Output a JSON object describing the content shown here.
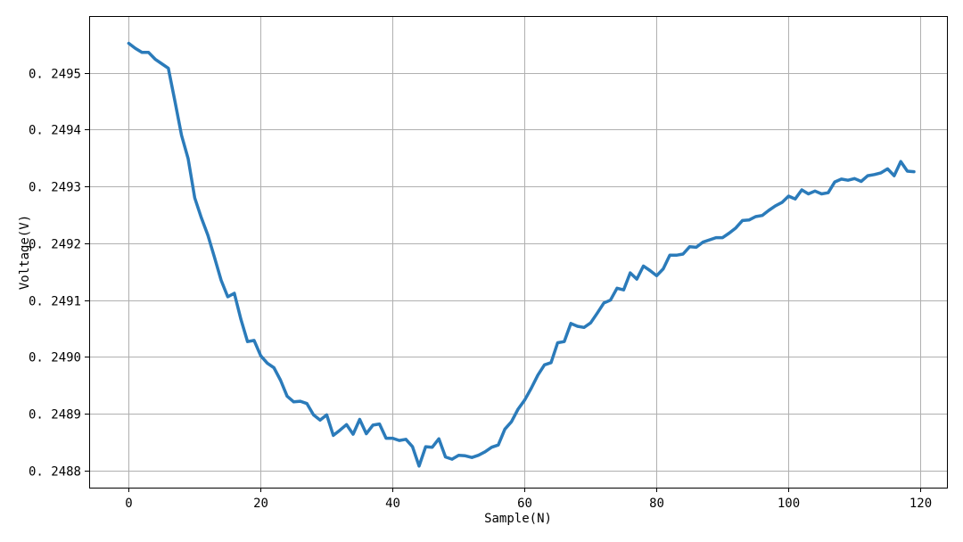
{
  "chart_data": {
    "type": "line",
    "title": "",
    "xlabel": "Sample(N)",
    "ylabel": "Voltage(V)",
    "xlim": [
      -6,
      124
    ],
    "ylim": [
      0.24877,
      0.2496
    ],
    "xticks": [
      0,
      20,
      40,
      60,
      80,
      100,
      120
    ],
    "xtick_labels": [
      "0",
      "20",
      "40",
      "60",
      "80",
      "100",
      "120"
    ],
    "yticks": [
      0.2488,
      0.2489,
      0.249,
      0.2491,
      0.2492,
      0.2493,
      0.2494,
      0.2495
    ],
    "ytick_labels": [
      "0. 2488",
      "0. 2489",
      "0. 2490",
      "0. 2491",
      "0. 2492",
      "0. 2493",
      "0. 2494",
      "0. 2495"
    ],
    "grid": true,
    "color": "#2b7bba",
    "series": [
      {
        "x": [
          0,
          1,
          2,
          3,
          4,
          5,
          6,
          7,
          8,
          9,
          10,
          11,
          12,
          13,
          14,
          15,
          16,
          17,
          18,
          19,
          20,
          21,
          22,
          23,
          24,
          25,
          26,
          27,
          28,
          29,
          30,
          31,
          32,
          33,
          34,
          35,
          36,
          37,
          38,
          39,
          40,
          41,
          42,
          43,
          44,
          45,
          46,
          47,
          48,
          49,
          50,
          51,
          52,
          53,
          54,
          55,
          56,
          57,
          58,
          59,
          60,
          61,
          62,
          63,
          64,
          65,
          66,
          67,
          68,
          69,
          70,
          71,
          72,
          73,
          74,
          75,
          76,
          77,
          78,
          79,
          80,
          81,
          82,
          83,
          84,
          85,
          86,
          87,
          88,
          89,
          90,
          91,
          92,
          93,
          94,
          95,
          96,
          97,
          98,
          99,
          100,
          101,
          102,
          103,
          104,
          105,
          106,
          107,
          108,
          109,
          110,
          111,
          112,
          113,
          114,
          115,
          116,
          117,
          118,
          119
        ],
        "y": [
          0.249552,
          0.249543,
          0.249536,
          0.249536,
          0.249524,
          0.249516,
          0.249508,
          0.24945,
          0.24939,
          0.249349,
          0.24928,
          0.249245,
          0.249214,
          0.249175,
          0.249135,
          0.249106,
          0.249112,
          0.249066,
          0.249027,
          0.249029,
          0.249002,
          0.248989,
          0.248981,
          0.248959,
          0.248931,
          0.248921,
          0.248922,
          0.248918,
          0.248898,
          0.248889,
          0.248898,
          0.248862,
          0.248871,
          0.248881,
          0.248864,
          0.24889,
          0.248865,
          0.24888,
          0.248882,
          0.248857,
          0.248857,
          0.248853,
          0.248855,
          0.248842,
          0.248808,
          0.248842,
          0.248841,
          0.248856,
          0.248824,
          0.24882,
          0.248827,
          0.248826,
          0.248823,
          0.248827,
          0.248833,
          0.248841,
          0.248845,
          0.248873,
          0.248886,
          0.248908,
          0.248924,
          0.248945,
          0.248968,
          0.248986,
          0.24899,
          0.249025,
          0.249027,
          0.249059,
          0.249054,
          0.249052,
          0.24906,
          0.249077,
          0.249095,
          0.2491,
          0.249121,
          0.249118,
          0.249148,
          0.249137,
          0.24916,
          0.249152,
          0.249143,
          0.249155,
          0.249179,
          0.249179,
          0.249181,
          0.249194,
          0.249193,
          0.249202,
          0.249206,
          0.24921,
          0.24921,
          0.249218,
          0.249227,
          0.24924,
          0.249241,
          0.249247,
          0.249249,
          0.249258,
          0.249266,
          0.249272,
          0.249283,
          0.249278,
          0.249294,
          0.249287,
          0.249292,
          0.249287,
          0.249289,
          0.249308,
          0.249313,
          0.249311,
          0.249314,
          0.249309,
          0.249319,
          0.249321,
          0.249324,
          0.249331,
          0.249319,
          0.249344,
          0.249327,
          0.249326
        ]
      }
    ]
  }
}
